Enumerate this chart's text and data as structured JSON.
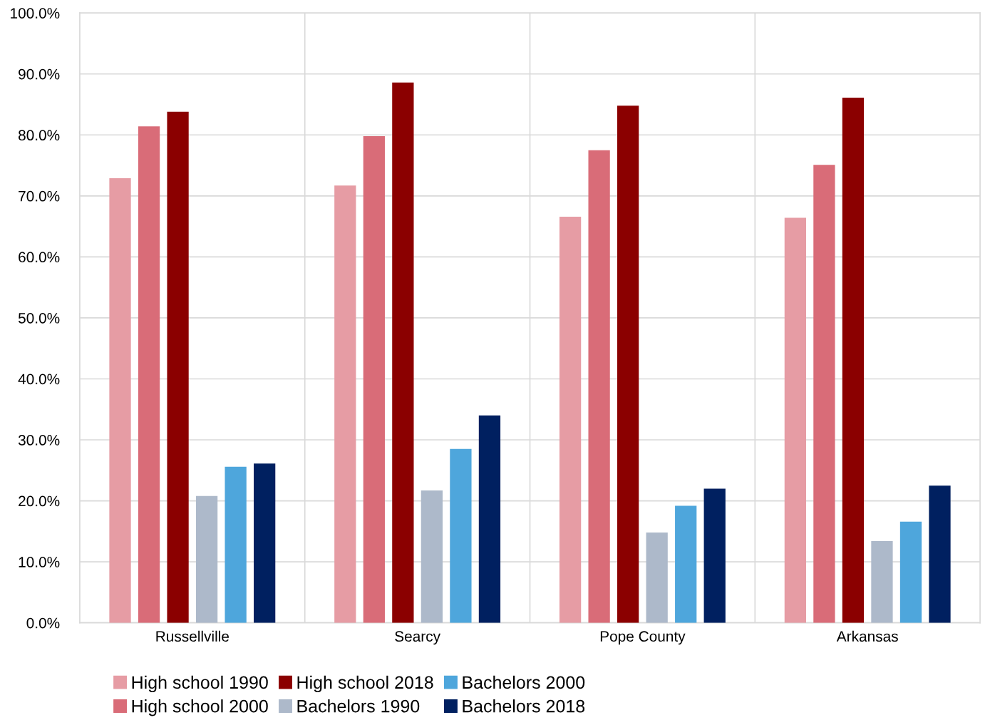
{
  "chart_data": {
    "type": "bar",
    "categories": [
      "Russellville",
      "Searcy",
      "Pope County",
      "Arkansas"
    ],
    "series": [
      {
        "name": "High school 1990",
        "color": "#e69ca4",
        "values": [
          72.9,
          71.7,
          66.6,
          66.4
        ]
      },
      {
        "name": "High school 2000",
        "color": "#d96c78",
        "values": [
          81.4,
          79.8,
          77.5,
          75.1
        ]
      },
      {
        "name": "High school 2018",
        "color": "#8b0000",
        "values": [
          83.8,
          88.6,
          84.8,
          86.1
        ]
      },
      {
        "name": "Bachelors 1990",
        "color": "#adb9ca",
        "values": [
          20.8,
          21.7,
          14.8,
          13.4
        ]
      },
      {
        "name": "Bachelors 2000",
        "color": "#4ea6dc",
        "values": [
          25.6,
          28.5,
          19.2,
          16.6
        ]
      },
      {
        "name": "Bachelors 2018",
        "color": "#002060",
        "values": [
          26.1,
          34.0,
          22.0,
          22.5
        ]
      }
    ],
    "ylim": [
      0,
      100
    ],
    "yticks": [
      {
        "value": 0,
        "label": "0.0%"
      },
      {
        "value": 10,
        "label": "10.0%"
      },
      {
        "value": 20,
        "label": "20.0%"
      },
      {
        "value": 30,
        "label": "30.0%"
      },
      {
        "value": 40,
        "label": "40.0%"
      },
      {
        "value": 50,
        "label": "50.0%"
      },
      {
        "value": 60,
        "label": "60.0%"
      },
      {
        "value": 70,
        "label": "70.0%"
      },
      {
        "value": 80,
        "label": "80.0%"
      },
      {
        "value": 90,
        "label": "90.0%"
      },
      {
        "value": 100,
        "label": "100.0%"
      }
    ],
    "grid": true,
    "legend": "bottom"
  }
}
